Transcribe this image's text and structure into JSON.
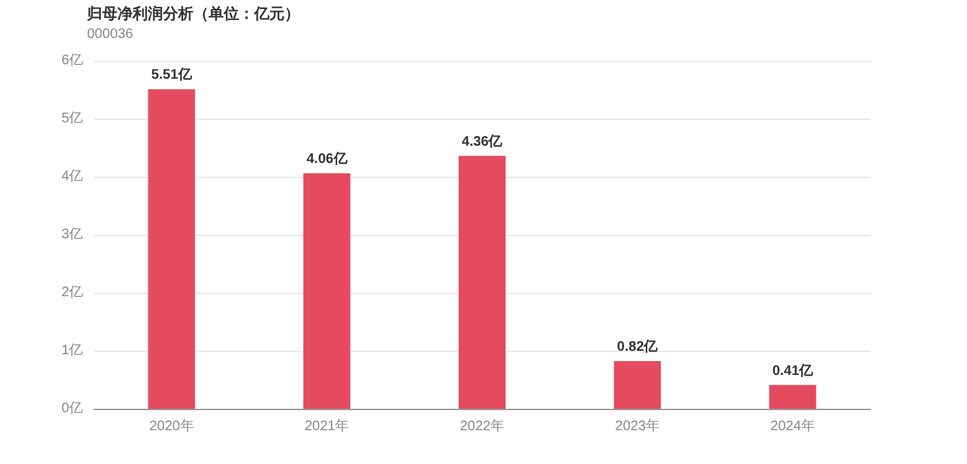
{
  "chart_data": {
    "type": "bar",
    "title": "归母净利润分析（单位：亿元）",
    "subtitle": "000036",
    "categories": [
      "2020年",
      "2021年",
      "2022年",
      "2023年",
      "2024年"
    ],
    "values": [
      5.51,
      4.06,
      4.36,
      0.82,
      0.41
    ],
    "value_labels": [
      "5.51亿",
      "4.06亿",
      "4.36亿",
      "0.82亿",
      "0.41亿"
    ],
    "color": "#e54b5e",
    "ylim": [
      0,
      6
    ],
    "yticks": [
      {
        "value": 0,
        "label": "0亿"
      },
      {
        "value": 1,
        "label": "1亿"
      },
      {
        "value": 2,
        "label": "2亿"
      },
      {
        "value": 3,
        "label": "3亿"
      },
      {
        "value": 4,
        "label": "4亿"
      },
      {
        "value": 5,
        "label": "5亿"
      },
      {
        "value": 6,
        "label": "6亿"
      }
    ],
    "grid": "y"
  }
}
